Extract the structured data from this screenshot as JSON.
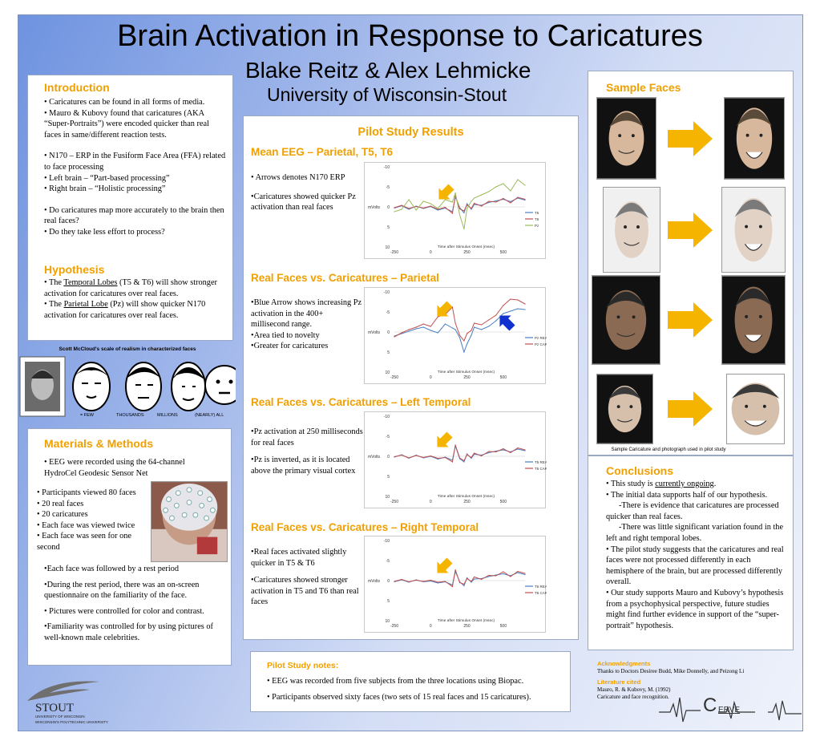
{
  "title": "Brain Activation in Response to Caricatures",
  "authors": "Blake Reitz & Alex Lehmicke",
  "affiliation": "University of Wisconsin-Stout",
  "intro": {
    "heading": "Introduction",
    "b1": "• Caricatures can be found in all forms of media.",
    "b2": "•  Mauro & Kubovy found that caricatures (AKA “Super-Portraits”) were encoded quicker than real faces in same/different reaction tests.",
    "b3": "• N170 – ERP  in the Fusiform Face Area (FFA) related to face processing",
    "b4": "• Left brain – “Part-based processing”",
    "b5": "• Right brain – “Holistic processing”",
    "b6": "• Do caricatures map more accurately to the brain then real faces?",
    "b7": "• Do they take less effort to process?"
  },
  "hypo": {
    "heading": "Hypothesis",
    "p1a": "• The ",
    "p1u": "Temporal Lobes",
    "p1b": " (T5 & T6) will show stronger activation for caricatures over real faces.",
    "p2a": "• The ",
    "p2u": "Parietal Lobe",
    "p2b": " (Pz) will show quicker N170 activation for caricatures over real faces."
  },
  "scale": {
    "title": "Scott McCloud's scale of realism in characterized faces",
    "labels": [
      "= FEW",
      "THOUSANDS",
      "MILLIONS",
      "(NEARLY) ALL"
    ]
  },
  "methods": {
    "heading": "Materials & Methods",
    "b1": "• EEG were recorded using the 64-channel HydroCel Geodesic Sensor Net",
    "l1": "• Participants viewed 80 faces",
    "l2": "• 20 real faces",
    "l3": "• 20 caricatures",
    "l4": "• Each face was viewed twice",
    "l5": "• Each face was seen for one second",
    "b2": "•Each face was followed by a rest period",
    "b3": "•During the rest period, there was an on-screen questionnaire on the familiarity of the face.",
    "b4": "• Pictures were controlled for color and contrast.",
    "b5": "•Familiarity was controlled for by using pictures of well-known male celebrities."
  },
  "logo": {
    "name": "STOUT",
    "line1": "UNIVERSITY OF WISCONSIN",
    "line2": "WISCONSIN'S POLYTECHNIC UNIVERSITY"
  },
  "pilot": {
    "heading": "Pilot Study Results",
    "s1": {
      "heading": "Mean EEG – Parietal, T5, T6",
      "t1": "• Arrows denotes N170 ERP",
      "t2": "•Caricatures showed quicker Pz activation than real faces"
    },
    "s2": {
      "heading": "Real Faces vs. Caricatures – Parietal",
      "t1": "•Blue Arrow shows increasing Pz activation in the 400+ millisecond range.",
      "t2": "•Area tied to novelty",
      "t3": "•Greater for caricatures"
    },
    "s3": {
      "heading": "Real Faces vs. Caricatures – Left Temporal",
      "t1": "•Pz activation at 250 milliseconds for real faces",
      "t2": "•Pz is inverted, as it is located above the primary visual cortex"
    },
    "s4": {
      "heading": "Real Faces vs. Caricatures – Right Temporal",
      "t1": "•Real faces activated slightly quicker in T5 & T6",
      "t2": "•Caricatures showed stronger activation in T5 and T6 than real faces"
    }
  },
  "chart_data": [
    {
      "type": "line",
      "ylabel": "mVolts",
      "xlabel": "Time after Stimulus Onset (msec)",
      "xticks": [
        "-250",
        "0",
        "250",
        "500"
      ],
      "yticks": [
        "-10",
        "-5",
        "0",
        "5",
        "10"
      ],
      "ylim": [
        -10,
        10
      ],
      "xlim": [
        -250,
        650
      ],
      "inverted_y": true,
      "x": [
        -250,
        -200,
        -150,
        -100,
        -50,
        0,
        50,
        100,
        150,
        170,
        200,
        230,
        250,
        280,
        300,
        350,
        400,
        450,
        500,
        550,
        600,
        650
      ],
      "series": [
        {
          "name": "T5",
          "color": "#4a7fc1",
          "values": [
            0.3,
            -0.3,
            0.6,
            -0.2,
            0.4,
            -0.1,
            0.8,
            0.3,
            1.2,
            -2.5,
            0.2,
            1.5,
            -0.8,
            0.6,
            -0.6,
            -0.4,
            -1.1,
            -1.5,
            -1.9,
            -1.3,
            -2.2,
            -1.7
          ]
        },
        {
          "name": "T6",
          "color": "#c0504d",
          "values": [
            0.2,
            -0.4,
            0.4,
            -0.1,
            0.3,
            -0.2,
            0.6,
            0.1,
            1.6,
            -2.8,
            0.5,
            1.0,
            -0.5,
            0.4,
            -0.9,
            -0.2,
            -1.4,
            -1.2,
            -2.1,
            -1.0,
            -2.4,
            -1.9
          ]
        },
        {
          "name": "Pz",
          "color": "#9bbb59",
          "values": [
            1.2,
            0.6,
            -1.8,
            0.8,
            -1.4,
            -0.8,
            0.4,
            -1.8,
            -1.2,
            -3.5,
            2.0,
            5.5,
            0.4,
            -1.4,
            -2.2,
            -3.0,
            -3.8,
            -5.0,
            -5.8,
            -4.0,
            -6.8,
            -5.4
          ]
        }
      ]
    },
    {
      "type": "line",
      "ylabel": "mVolts",
      "xlabel": "Time after Stimulus Onset (msec)",
      "xticks": [
        "-250",
        "0",
        "250",
        "500"
      ],
      "yticks": [
        "-10",
        "-5",
        "0",
        "5",
        "10"
      ],
      "ylim": [
        -10,
        10
      ],
      "xlim": [
        -250,
        650
      ],
      "inverted_y": true,
      "x": [
        -250,
        -200,
        -150,
        -100,
        -50,
        0,
        50,
        100,
        150,
        170,
        200,
        230,
        250,
        280,
        300,
        350,
        400,
        450,
        500,
        550,
        600,
        650
      ],
      "series": [
        {
          "name": "Pz REAL",
          "color": "#4a7fc1",
          "values": [
            1.0,
            0.4,
            -0.2,
            -0.8,
            -1.2,
            -0.4,
            0.2,
            -2.0,
            -1.0,
            -0.6,
            1.4,
            5.0,
            3.0,
            0.8,
            -1.2,
            -0.6,
            -1.4,
            -2.8,
            -4.6,
            -5.2,
            -5.8,
            -5.6
          ]
        },
        {
          "name": "Pz CARICATURE",
          "color": "#c0504d",
          "values": [
            1.2,
            0.2,
            -0.6,
            -1.2,
            -2.0,
            -1.4,
            -3.8,
            -4.4,
            -6.2,
            -2.2,
            0.8,
            2.2,
            0.4,
            -0.4,
            -2.2,
            -1.8,
            -3.0,
            -4.2,
            -6.6,
            -8.2,
            -8.0,
            -7.0
          ]
        }
      ]
    },
    {
      "type": "line",
      "ylabel": "mVolts",
      "xlabel": "Time after Stimulus Onset (msec)",
      "xticks": [
        "-250",
        "0",
        "250",
        "500"
      ],
      "yticks": [
        "-10",
        "-5",
        "0",
        "5",
        "10"
      ],
      "ylim": [
        -10,
        10
      ],
      "xlim": [
        -250,
        650
      ],
      "inverted_y": true,
      "x": [
        -250,
        -200,
        -150,
        -100,
        -50,
        0,
        50,
        100,
        150,
        170,
        200,
        230,
        250,
        280,
        300,
        350,
        400,
        450,
        500,
        550,
        600,
        650
      ],
      "series": [
        {
          "name": "T5 REAL",
          "color": "#4a7fc1",
          "values": [
            0.2,
            -0.4,
            0.5,
            -0.3,
            0.4,
            0.0,
            0.7,
            0.2,
            1.0,
            -2.6,
            0.6,
            1.4,
            -0.6,
            0.5,
            -0.5,
            -0.3,
            -0.9,
            -1.3,
            -1.6,
            -1.1,
            -1.8,
            -1.4
          ]
        },
        {
          "name": "T5 CARICATURE",
          "color": "#c0504d",
          "values": [
            0.1,
            -0.3,
            0.4,
            -0.2,
            0.3,
            -0.1,
            0.5,
            0.3,
            1.4,
            -2.8,
            0.4,
            1.1,
            -0.4,
            0.3,
            -0.8,
            -0.1,
            -1.2,
            -1.1,
            -1.9,
            -0.9,
            -2.1,
            -1.6
          ]
        }
      ]
    },
    {
      "type": "line",
      "ylabel": "mVolts",
      "xlabel": "Time after Stimulus Onset (msec)",
      "xticks": [
        "-250",
        "0",
        "250",
        "500"
      ],
      "yticks": [
        "-10",
        "-5",
        "0",
        "5",
        "10"
      ],
      "ylim": [
        -10,
        10
      ],
      "xlim": [
        -250,
        650
      ],
      "inverted_y": true,
      "x": [
        -250,
        -200,
        -150,
        -100,
        -50,
        0,
        50,
        100,
        150,
        170,
        200,
        230,
        250,
        280,
        300,
        350,
        400,
        450,
        500,
        550,
        600,
        650
      ],
      "series": [
        {
          "name": "T6 REAL",
          "color": "#4a7fc1",
          "values": [
            0.3,
            -0.2,
            0.4,
            -0.2,
            0.3,
            0.1,
            0.6,
            0.3,
            1.1,
            -2.3,
            0.3,
            1.3,
            -0.7,
            0.4,
            -0.4,
            -0.5,
            -1.0,
            -1.4,
            -1.7,
            -1.2,
            -2.0,
            -1.5
          ]
        },
        {
          "name": "T6 CARICATURE",
          "color": "#c0504d",
          "values": [
            0.2,
            -0.3,
            0.3,
            -0.1,
            0.2,
            -0.1,
            0.4,
            0.2,
            1.5,
            -2.7,
            0.5,
            0.9,
            -0.5,
            0.2,
            -0.9,
            -0.3,
            -1.3,
            -1.2,
            -2.2,
            -1.0,
            -2.3,
            -1.8
          ]
        }
      ]
    }
  ],
  "notes": {
    "heading": "Pilot Study notes:",
    "b1": "• EEG was recorded from five subjects from the three locations using Biopac.",
    "b2": "• Participants observed sixty faces (two sets of 15 real faces and 15 caricatures)."
  },
  "samples": {
    "heading": "Sample Faces",
    "caption": "Sample Caricature and photograph used in pilot study"
  },
  "concl": {
    "heading": "Conclusions",
    "b1a": "• This study is ",
    "b1u": "currently ongoing",
    "b1b": ".",
    "b2": "• The initial data supports half of our hypothesis.",
    "b3": "-There is evidence that caricatures are processed quicker than real faces.",
    "b4": "-There was little significant variation found in the left and right temporal lobes.",
    "b5": "• The pilot study suggests that the caricatures and real faces were not processed differently in each hemisphere of the brain, but are processed differently overall.",
    "b6": "• Our study supports Mauro and Kubovy’s hypothesis from a psychophysical perspective, future studies might find further evidence in support of the “super-portrait” hypothesis."
  },
  "ack": {
    "heading": "Acknowledgments",
    "text": "Thanks to Doctors Desiree Budd, Mike Donnelly, and  Peizong Li"
  },
  "lit": {
    "heading": "Literature cited",
    "l1": "Mauro, R. & Kubovy, M.  (1992)",
    "l2": "Caricature and face recognition."
  },
  "nerve": {
    "c": "C",
    "text": "ERVE"
  },
  "colors": {
    "accent": "#f0a000",
    "arrow": "#f5b400",
    "blue_arrow": "#1030d0"
  }
}
